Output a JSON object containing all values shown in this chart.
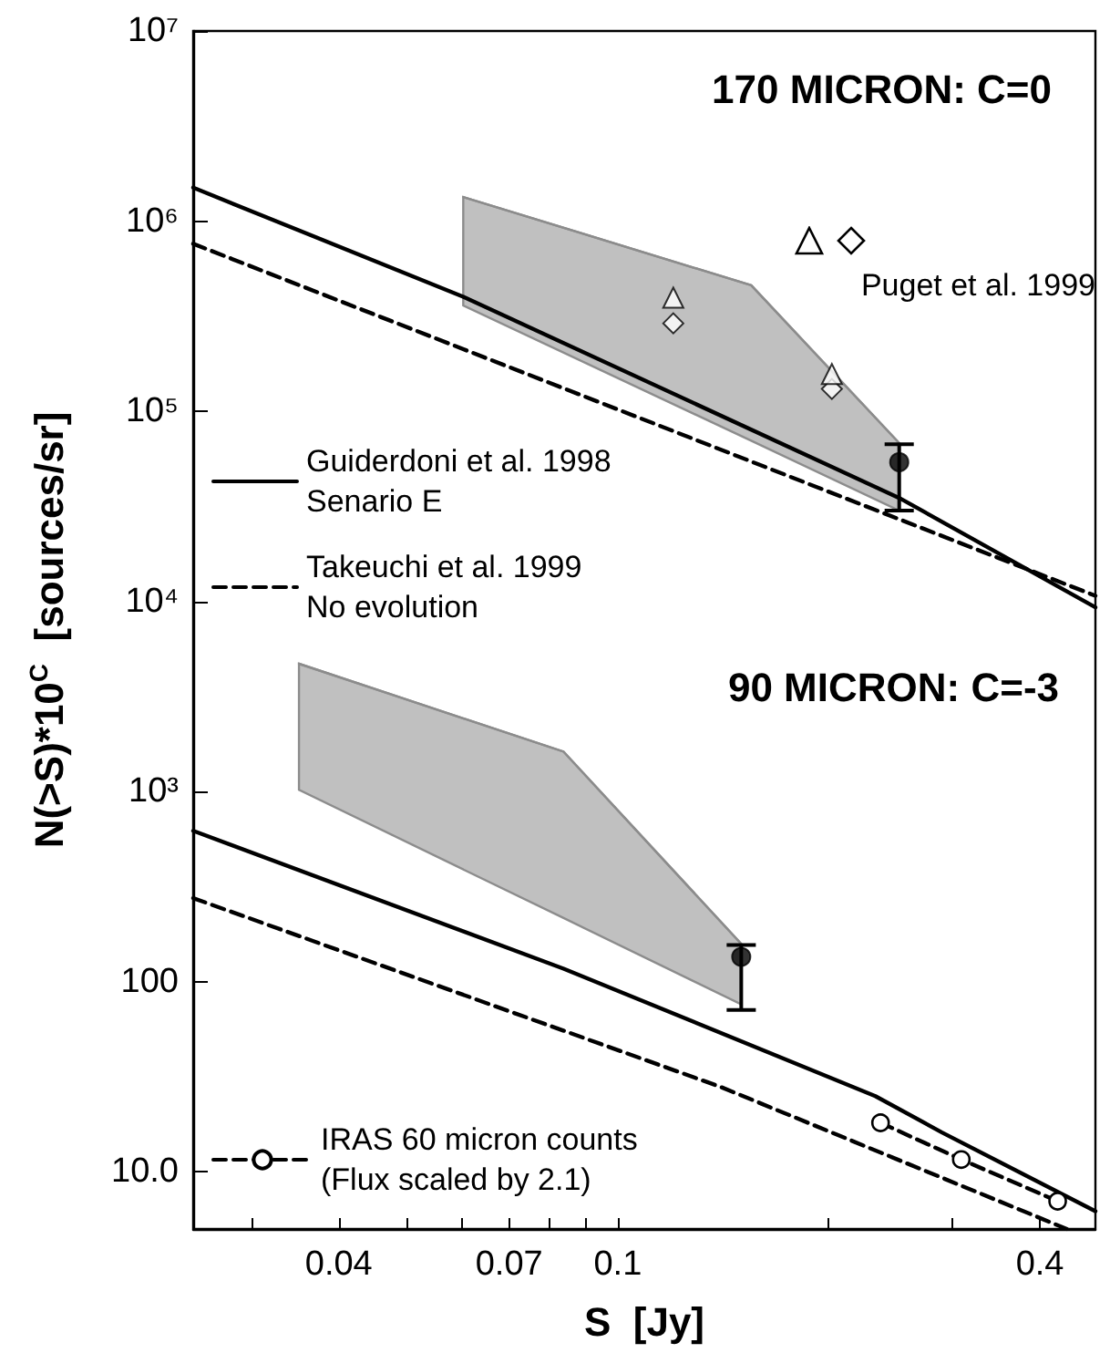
{
  "chart_data": {
    "type": "line",
    "xlabel": "S  [Jy]",
    "ylabel": "N(>S)*10$^{C}$  [sources/sr]",
    "log": "xy",
    "xlim": [
      0.0248,
      0.48
    ],
    "xticks": [
      {
        "value": 0.03,
        "label": null
      },
      0.04,
      {
        "value": 0.05,
        "label": null
      },
      {
        "value": 0.06,
        "label": null
      },
      0.07,
      {
        "value": 0.08,
        "label": null
      },
      {
        "value": 0.09,
        "label": null
      },
      0.1,
      {
        "value": 0.2,
        "label": null
      },
      {
        "value": 0.3,
        "label": null
      },
      0.4
    ],
    "ylim": [
      5,
      10000000
    ],
    "yticks": [
      {
        "value": 10,
        "label": "10.0"
      },
      100,
      {
        "value": 1000,
        "label": "10³"
      },
      {
        "value": 10000,
        "label": "10⁴"
      },
      {
        "value": 100000,
        "label": "10⁵"
      },
      {
        "value": 1000000,
        "label": "10⁶"
      },
      {
        "value": 10000000,
        "label": "10⁷"
      }
    ],
    "legend": "left",
    "annotations": [
      "170 MICRON: C=0",
      "90 MICRON: C=-3",
      "Puget et al. 1999"
    ],
    "series": [
      {
        "color": "#8c8c8c",
        "line_style": "solid",
        "marker": "none",
        "x": [
          0.0602,
          0.155,
          0.252
        ],
        "values": [
          1340000,
          460000,
          68000
        ],
        "lower": [
          360000,
          70000,
          30000
        ],
        "upper": [
          1340000,
          460000,
          68000
        ]
      },
      {
        "color": "#8c8c8c",
        "line_style": "solid",
        "marker": "none",
        "x": [
          0.0351,
          0.0837,
          0.15
        ],
        "values": [
          4700,
          1620,
          158
        ],
        "lower": [
          1020,
          216,
          76
        ],
        "upper": [
          4700,
          1620,
          158
        ]
      },
      {
        "name": "Guiderdoni et al. 1998\nSenario E",
        "color": "#000000",
        "line_style": "solid",
        "marker": "none",
        "x": [
          0.0248,
          0.0602,
          0.252,
          0.48
        ],
        "values": [
          1500000,
          400000,
          35000,
          9300
        ]
      },
      {
        "name": "Takeuchi et al. 1999\nNo evolution",
        "color": "#000000",
        "line_style": "dashed",
        "marker": "none",
        "x": [
          0.0248,
          0.48
        ],
        "values": [
          760000,
          10700
        ]
      },
      {
        "color": "#000000",
        "line_style": "solid",
        "marker": "none",
        "x": [
          0.0248,
          0.0837,
          0.233,
          0.29,
          0.48
        ],
        "values": [
          621,
          117,
          25,
          16.1,
          6.2
        ]
      },
      {
        "color": "#000000",
        "line_style": "dashed",
        "marker": "none",
        "x": [
          0.0248,
          0.14,
          0.437
        ],
        "values": [
          275,
          28,
          5
        ]
      },
      {
        "type": "scatter",
        "color": "#000000",
        "marker": "triangle",
        "x": [
          0.12,
          0.202
        ],
        "values": [
          396000,
          157000
        ]
      },
      {
        "type": "scatter",
        "color": "#000000",
        "marker": "diamond",
        "x": [
          0.12,
          0.202
        ],
        "values": [
          290000,
          131000
        ]
      },
      {
        "type": "scatter",
        "color": "#000000",
        "marker": "circle",
        "x": [
          0.252
        ],
        "values": [
          54000
        ],
        "errors": [
          [
            30000,
            67000
          ]
        ]
      },
      {
        "type": "scatter",
        "color": "#000000",
        "marker": "circle",
        "x": [
          0.15
        ],
        "values": [
          135
        ],
        "errors": [
          [
            71,
            156
          ]
        ]
      },
      {
        "name": "IRAS 60 micron counts\n(Flux scaled by 2.1)",
        "color": "#000000",
        "line_style": "dashed",
        "marker": "circle",
        "x": [
          0.237,
          0.309,
          0.424
        ],
        "values": [
          18.1,
          11.6,
          7.0
        ]
      }
    ]
  }
}
